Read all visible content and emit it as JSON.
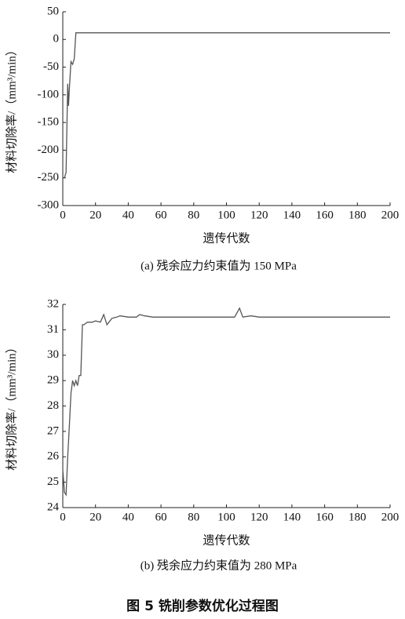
{
  "chart_data": [
    {
      "type": "line",
      "caption": "(a) 残余应力约束值为 150 MPa",
      "x_label": "遗传代数",
      "y_label": "材料切除率/（mm³/min）",
      "x": [
        1,
        2,
        3,
        3.5,
        4,
        5,
        6,
        7,
        8,
        200
      ],
      "series": [
        {
          "name": "材料切除率",
          "color": "#555555",
          "values": [
            -250,
            -240,
            -80,
            -120,
            -90,
            -40,
            -45,
            -35,
            12,
            12
          ]
        }
      ],
      "xlim": [
        0,
        200
      ],
      "xticks": [
        0,
        20,
        40,
        60,
        80,
        100,
        120,
        140,
        160,
        180,
        200
      ],
      "ylim": [
        -300,
        50
      ],
      "yticks": [
        50,
        0,
        -50,
        -100,
        -150,
        -200,
        -250,
        -300
      ]
    },
    {
      "type": "line",
      "caption": "(b) 残余应力约束值为 280 MPa",
      "x_label": "遗传代数",
      "y_label": "材料切除率/（mm³/min）",
      "x": [
        0,
        1,
        2,
        3,
        4,
        5,
        6,
        7,
        8,
        9,
        10,
        11,
        12,
        13,
        15,
        18,
        20,
        23,
        25,
        27,
        30,
        33,
        35,
        40,
        45,
        47,
        50,
        55,
        65,
        105,
        108,
        110,
        115,
        120,
        200
      ],
      "series": [
        {
          "name": "材料切除率",
          "color": "#555555",
          "values": [
            25.5,
            24.6,
            24.5,
            26,
            27.2,
            28.5,
            29,
            28.8,
            29,
            28.8,
            29.2,
            29.2,
            31.2,
            31.2,
            31.3,
            31.3,
            31.35,
            31.3,
            31.6,
            31.2,
            31.45,
            31.5,
            31.55,
            31.5,
            31.5,
            31.6,
            31.55,
            31.5,
            31.5,
            31.5,
            31.85,
            31.5,
            31.55,
            31.5,
            31.5
          ]
        }
      ],
      "xlim": [
        0,
        200
      ],
      "xticks": [
        0,
        20,
        40,
        60,
        80,
        100,
        120,
        140,
        160,
        180,
        200
      ],
      "ylim": [
        24,
        32
      ],
      "yticks": [
        32,
        31,
        30,
        29,
        28,
        27,
        26,
        25,
        24
      ]
    }
  ],
  "figure_title": "图 5 铣削参数优化过程图"
}
